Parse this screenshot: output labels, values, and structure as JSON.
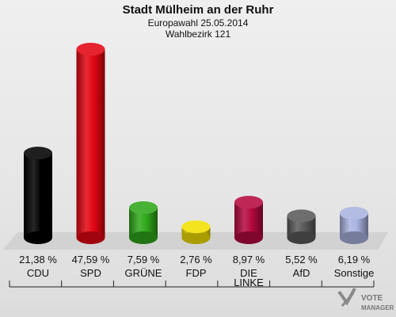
{
  "header": {
    "title": "Stadt Mülheim an der Ruhr",
    "subtitle": "Europawahl 25.05.2014",
    "district": "Wahlbezirk 121"
  },
  "logo": {
    "line1": "VOTE",
    "line2": "MANAGER"
  },
  "chart_data": {
    "type": "bar",
    "title": "Stadt Mülheim an der Ruhr",
    "subtitle": "Europawahl 25.05.2014 / Wahlbezirk 121",
    "categories": [
      "CDU",
      "SPD",
      "GRÜNE",
      "FDP",
      "DIE LINKE",
      "AfD",
      "Sonstige"
    ],
    "values": [
      21.38,
      47.59,
      7.59,
      2.76,
      8.97,
      5.52,
      6.19
    ],
    "value_labels": [
      "21,38 %",
      "47,59 %",
      "7,59 %",
      "2,76 %",
      "8,97 %",
      "5,52 %",
      "6,19 %"
    ],
    "colors": [
      "#000000",
      "#e30613",
      "#2fa81b",
      "#f2e000",
      "#b5093f",
      "#5a5a5a",
      "#a9b3df"
    ],
    "ylim": [
      0,
      50
    ],
    "legend": "none",
    "grid": false
  }
}
